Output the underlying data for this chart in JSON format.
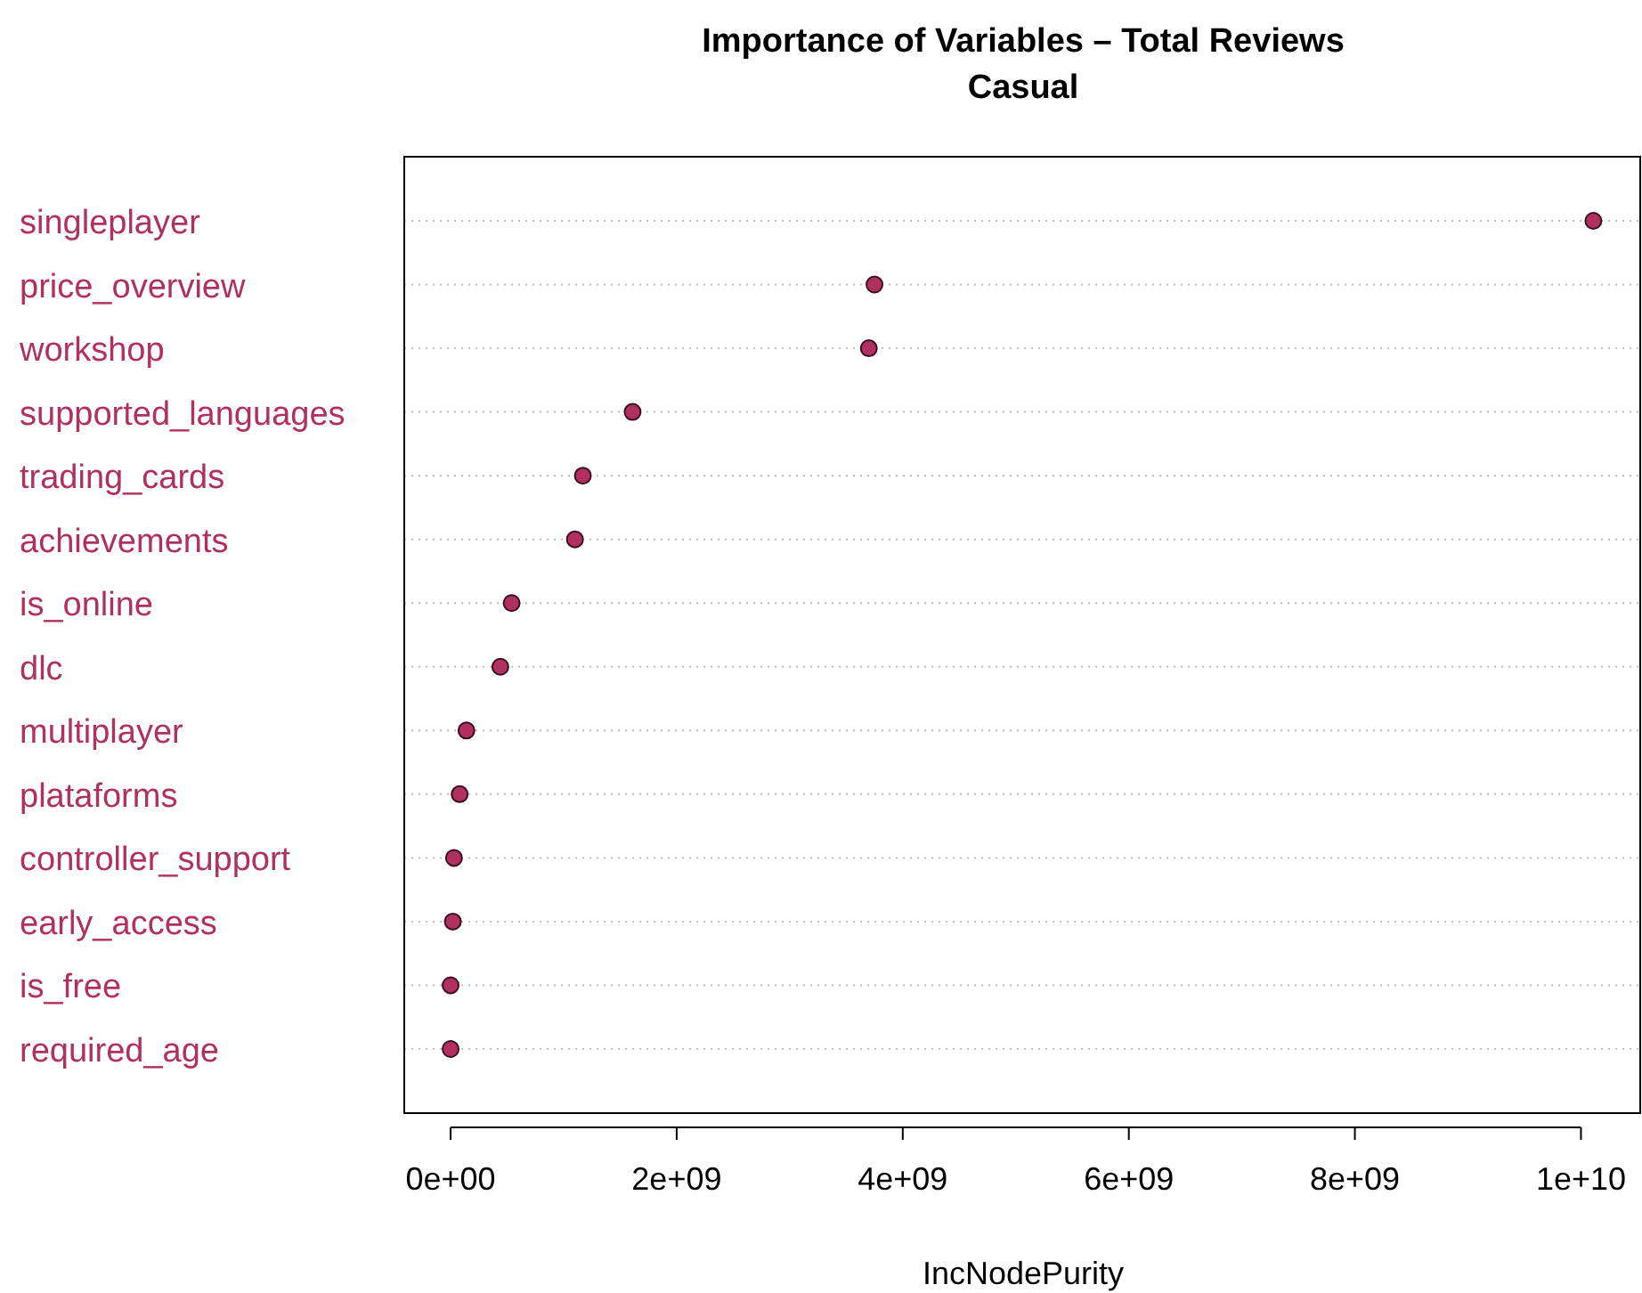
{
  "chart_data": {
    "type": "scatter",
    "title": "Importance of Variables – Total Reviews",
    "subtitle": "Casual",
    "xlabel": "IncNodePurity",
    "orientation": "horizontal",
    "categories": [
      "singleplayer",
      "price_overview",
      "workshop",
      "supported_languages",
      "trading_cards",
      "achievements",
      "is_online",
      "dlc",
      "multiplayer",
      "plataforms",
      "controller_support",
      "early_access",
      "is_free",
      "required_age"
    ],
    "series": [
      {
        "color": "#b03060",
        "values": [
          10110000000,
          3750000000,
          3700000000,
          1610000000,
          1170000000,
          1100000000,
          540000000,
          440000000,
          140000000,
          80000000,
          30000000,
          20000000,
          0,
          0
        ]
      }
    ],
    "xlim": [
      -410000000,
      10540000000
    ],
    "xticks": [
      {
        "value": 0,
        "label": "0e+00"
      },
      {
        "value": 2000000000,
        "label": "2e+09"
      },
      {
        "value": 4000000000,
        "label": "4e+09"
      },
      {
        "value": 6000000000,
        "label": "6e+09"
      },
      {
        "value": 8000000000,
        "label": "8e+09"
      },
      {
        "value": 10000000000,
        "label": "1e+10"
      }
    ],
    "grid": "y",
    "marker": "circle"
  }
}
